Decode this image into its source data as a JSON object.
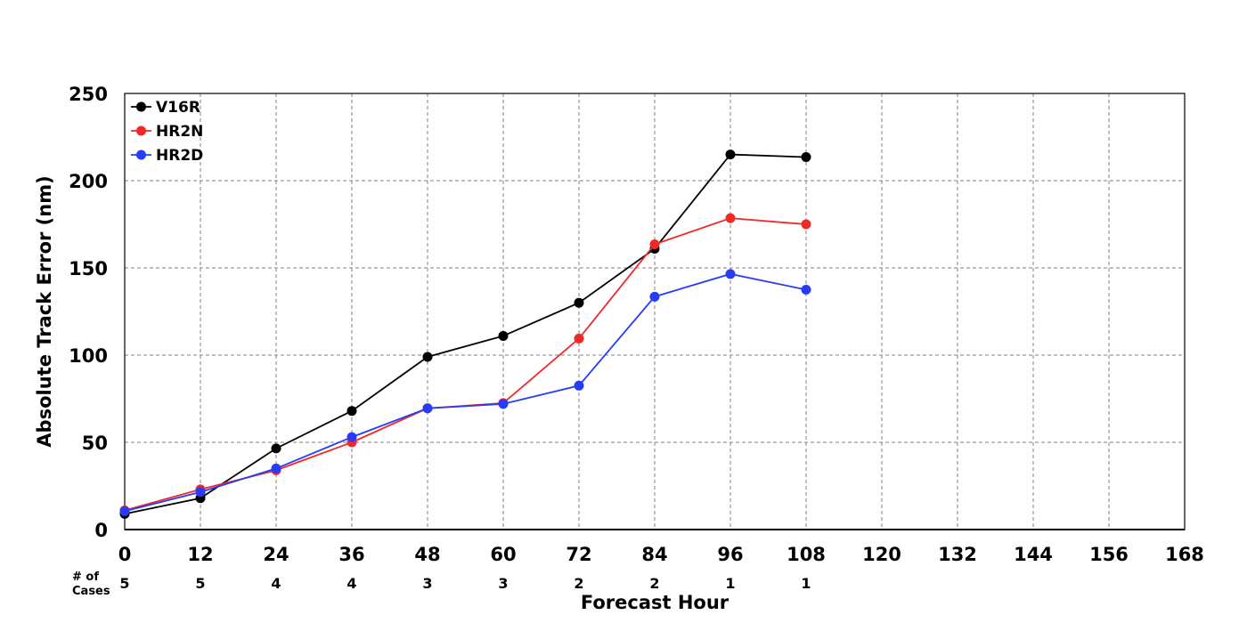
{
  "chart_data": {
    "type": "line",
    "xlabel": "Forecast Hour",
    "ylabel": "Absolute Track Error (nm)",
    "xlim": [
      0,
      168
    ],
    "ylim": [
      0,
      250
    ],
    "x_ticks": [
      "0",
      "12",
      "24",
      "36",
      "48",
      "60",
      "72",
      "84",
      "96",
      "108",
      "120",
      "132",
      "144",
      "156",
      "168"
    ],
    "y_ticks": [
      "0",
      "50",
      "100",
      "150",
      "200",
      "250"
    ],
    "grid": true,
    "legend_position": "top-left",
    "cases_label_line1": "# of",
    "cases_label_line2": "Cases",
    "cases_x": [
      0,
      12,
      24,
      36,
      48,
      60,
      72,
      84,
      96,
      108
    ],
    "cases": [
      "5",
      "5",
      "4",
      "4",
      "3",
      "3",
      "2",
      "2",
      "1",
      "1"
    ],
    "x": [
      0,
      12,
      24,
      36,
      48,
      60,
      72,
      84,
      96,
      108
    ],
    "series": [
      {
        "name": "V16R",
        "color": "#000000",
        "values": [
          9,
          18,
          46.5,
          68,
          99,
          111,
          130,
          161,
          215,
          213.5
        ]
      },
      {
        "name": "HR2N",
        "color": "#f02828",
        "values": [
          11,
          23,
          34,
          50,
          69.5,
          72.5,
          109.5,
          163.5,
          178.5,
          175
        ]
      },
      {
        "name": "HR2D",
        "color": "#283cf5",
        "values": [
          10.5,
          21.5,
          35,
          53,
          69.5,
          72,
          82.5,
          133.5,
          146.5,
          137.5
        ]
      }
    ]
  }
}
